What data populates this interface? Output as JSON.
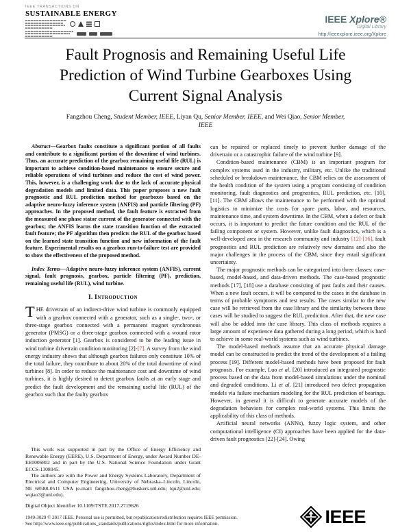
{
  "colors": {
    "accent_red": "#d0453a",
    "xplore": "#4a6a6e"
  },
  "masthead": {
    "journal_line1": "IEEE TRANSACTIONS ON",
    "journal_line2": "SUSTAINABLE ENERGY",
    "xplore_ieee": "IEEE",
    "xplore_word": "Xplore®",
    "xplore_sub": "Digital Library",
    "xplore_url": "http://ieeexplore.ieee.org/Xplore"
  },
  "title": {
    "lines": [
      "Fault Prognosis and Remaining Useful Life",
      "Prediction of Wind Turbine Gearboxes Using",
      "Current Signal Analysis"
    ]
  },
  "authors": {
    "line1": [
      {
        "t": "Fangzhou Cheng, "
      },
      {
        "t": "Student Member, IEEE",
        "cls": "i"
      },
      {
        "t": ", Liyan Qu, "
      },
      {
        "t": "Senior Member, IEEE",
        "cls": "i"
      },
      {
        "t": ", and Wei Qiao, "
      },
      {
        "t": "Senior Member,",
        "cls": "i"
      }
    ],
    "line2": "IEEE"
  },
  "left_column": {
    "abstract": [
      {
        "t": "Abstract—",
        "cls": "lead-i",
        "name": "abstract-lead"
      },
      {
        "t": "Gearbox faults constitute a significant portion of all faults and contribute to a significant portion of the downtime of wind turbines. Thus, an accurate prediction of the gearbox remaining useful life (RUL) is important to achieve condition-based maintenance to ensure secure and reliable operations of wind turbines and reduce the cost of wind power. This, however, is a challenging work due to the lack of accurate physical degradation models and limited data. This paper proposes a new fault prognostic and RUL prediction method for gearboxes based on the adaptive neuro-fuzzy inference system (ANFIS) and particle filtering (PF) approaches. In the proposed method, the fault feature is extracted from the measured one phase stator current of the generator connected with the gearbox; the ANFIS learns the state transition function of the extracted fault feature; the PF algorithm then predicts the RUL of the gearbox based on the learned state transition function and new information of the fault feature. Experimental results on a gearbox run-to-failure test are provided to show the effectiveness of the proposed method."
      }
    ],
    "index_terms": [
      {
        "t": "Index Terms—",
        "cls": "lead-i",
        "name": "index-terms-lead"
      },
      {
        "t": "Adaptive neuro-fuzzy inference system (ANFIS), current signal, fault prognosis, gearbox, particle filtering (PF), prediction, remaining useful life (RUL), wind turbine."
      }
    ],
    "section_heading": [
      {
        "t": "I. "
      },
      {
        "t": "Introduction",
        "cls": "sc"
      }
    ],
    "intro": [
      {
        "t": "T",
        "cls": "dropcap",
        "name": "drop-cap"
      },
      {
        "t": "HE drivetrain of an indirect-drive wind turbine is commonly equipped with a gearbox connected with a generator, such as a single-, two-, or three-stage gearbox connected with a permanent magnet synchronous generator (PMSG) or a three-stage gearbox connected with a wound rotor induction generator [1]. Gearbox is considered to be the leading issue in wind turbine drivetrain condition monitoring [2]-"
      },
      {
        "t": "[7]",
        "cls": "ref-red",
        "name": "citation-link",
        "inter": true
      },
      {
        "t": ". A survey from the wind energy industry shows that although gearbox failures only constitute 10% of the total failure, they contribute to about 20% of the total downtime of wind turbines [8]. In order to reduce the maintenance cost and downtime of wind turbines, it is highly desired to detect gearbox faults at an early stage and predict the fault development and the remaining useful life (RUL) of the gearbox such that the faulty gearbox"
      }
    ],
    "footnotes": {
      "f1": "This work was supported in part by the Office of Energy Efficiency and Renewable Energy (EERE), U.S. Department of Energy, under Award Number DE-EE0006802 and in part by the U.S. National Science Foundation under Grant ECCS-1308045.",
      "f2": "The authors are with the Power and Energy Systems Laboratory, Department of Electrical and Computer Engineering, University of Nebraska–Lincoln, Lincoln, NE 68588-0511 USA (e-mail: fangzhou.cheng@huskers.unl.edu; lqu2@unl.edu; wqiao3@unl.edu).",
      "doi": "Digital Object Identifier 10.1109/TSTE.2017.2719626"
    }
  },
  "right_column": {
    "p1": [
      {
        "t": "can be repaired or replaced timely to prevent further damage of the drivetrain or a catastrophic failure of the wind turbine [9]."
      }
    ],
    "p2": [
      {
        "t": "Condition-based maintenance (CBM) is an important program for complex systems used in the industry, military, etc. Unlike the traditional scheduled or breakdown maintenance, the CBM relies on the assessment of the health condition of the system using a program consisting of condition monitoring, fault diagnostics and prognostics, RUL prediction, etc. [10], [11]. The CBM allows the maintenance to be performed with the optimal logistics to minimize the costs for spare parts, labor, and resources, maintenance time, and system downtime. In the CBM, when a defect or fault occurs, it is important to predict the future condition and the RUL of the failing component or system. However, unlike fault diagnostics, which is a well-developed area in the research community and industry "
      },
      {
        "t": "[12]-[16]",
        "cls": "ref-red",
        "name": "citation-link",
        "inter": true
      },
      {
        "t": ", fault prognostics and RUL prediction are relatively new domains and also the major challenges in the process of the CBM, since they entail significant uncertainty."
      }
    ],
    "p3": [
      {
        "t": "The major prognostic methods can be categorized into three classes: case-based, model-based, and data-driven methods. The case-based prognostic methods [17], [18] use a database consisting of past faults and their causes. When a new fault occurs, it will be compared to the cases in the database in terms of probable symptoms and test results. The cases similar to the new case will be retrieved from the case library and the similarity between these cases will be studied to suggest the RUL prediction. After that, the new case will also be added into the case library. This class of methods requires a large amount of experience data gathered during a long period, which is hard to achieve in some real-world systems such as wind turbines."
      }
    ],
    "p4": [
      {
        "t": "The model-based methods assume that an accurate physical damage model can be constructed to predict the trend of the development of a failing process [19]. Different model-based methods have been proposed for fault prognosis. For example, Luo "
      },
      {
        "t": "et al.",
        "cls": "i"
      },
      {
        "t": " [20] introduced an integrated prognostic process based on the data from model-based simulations under the nominal and degraded conditions. Li "
      },
      {
        "t": "et al.",
        "cls": "i"
      },
      {
        "t": " [21] introduced two defect propagation models via failure mechanism modeling for the RUL prediction of bearings. However, in general it is difficult to generate accurate models of the degradation behaviors for complex real-world systems. This limits the applicability of this class of methods."
      }
    ],
    "p5": [
      {
        "t": "Artificial neural networks (ANNs), fuzzy logic system, and other computational intelligence (CI) approaches have been applied for the data-driven fault prognostics [22]-[24]. Owing"
      }
    ]
  },
  "footer": {
    "copyright_line1": "1949-3029 © 2017 IEEE. Personal use is permitted, but republication/redistribution requires IEEE permission.",
    "copyright_line2": "See http://www.ieee.org/publications_standards/publications/rights/index.html for more information.",
    "ieee_logo_text": "IEEE"
  }
}
